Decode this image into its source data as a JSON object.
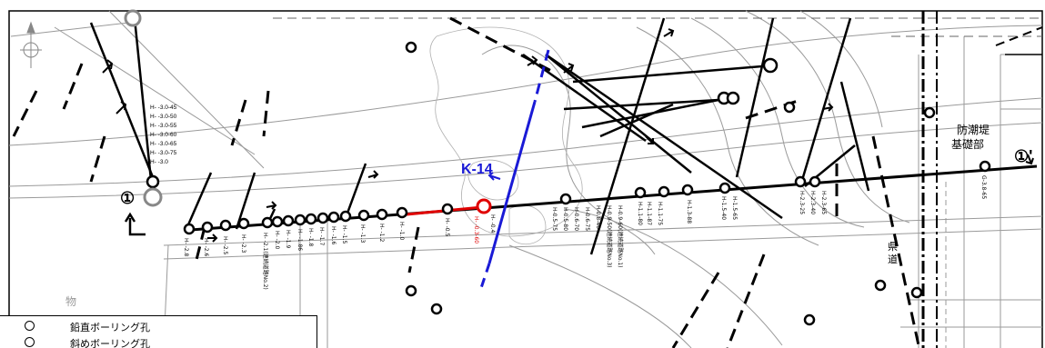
{
  "labels": {
    "section_start": "①",
    "section_end": "①'",
    "fault_name": "K-14",
    "prefecture_road": "県道",
    "seawall_line1": "防潮堤",
    "seawall_line2": "基礎部",
    "map_char": "物"
  },
  "legend": {
    "vertical_boring": "鉛直ボーリング孔",
    "inclined_boring": "斜めボーリング孔"
  },
  "left_hole_stack": [
    "H- -3.0-45",
    "H- -3.0-50",
    "H- -3.0-55",
    "H- -3.0-60",
    "H- -3.0-65",
    "H- -3.0-75",
    "H- -3.0"
  ],
  "hole_labels": [
    "H- -2.8",
    "H- -2.6",
    "H- -2.5",
    "H- -2.3",
    "H- -2.1(連続道路No.2)",
    "H- -2.0",
    "H- -1.9",
    "H- -1.86",
    "H- -1.8",
    "H- -1.7",
    "H- -1.6",
    "H- -1.5",
    "H- -1.3",
    "H- -1.2",
    "H- -1.0",
    "H- -0.5",
    "H- -0.3-60",
    "H- -0.4",
    "H-0.5-75",
    "H-0.5-80",
    "H-0.6-70",
    "H-0.6-75",
    "H-0.8-40",
    "H-0.9-50(連続道路No.3)",
    "H-0.9-60(連続道路No.1)",
    "H-1.1-80",
    "H-1.1-87",
    "H-1.1-75",
    "H-1.3-88",
    "H-1.5-40",
    "H-1.5-65",
    "H-2.3-25",
    "H-2.3-40",
    "H-2.3-65",
    "G-3.8-65"
  ]
}
